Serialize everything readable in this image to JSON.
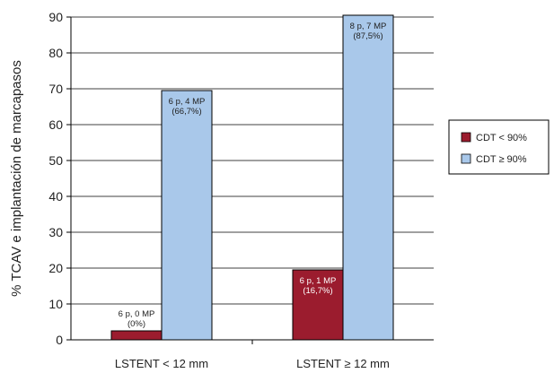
{
  "chart_data": {
    "type": "bar",
    "title": "",
    "xlabel": "",
    "ylabel": "% TCAV e implantación de marcapasos",
    "ylim": [
      0,
      90
    ],
    "yticks": [
      0,
      10,
      20,
      30,
      40,
      50,
      60,
      70,
      80,
      90
    ],
    "grid": true,
    "legend_position": "right",
    "categories": [
      "LSTENT < 12 mm",
      "LSTENT ≥ 12 mm"
    ],
    "series": [
      {
        "name": "CDT < 90%",
        "color": "#9b1c2e",
        "values": [
          2.5,
          19.5
        ],
        "labels": [
          [
            "6 p, 0 MP",
            "(0%)"
          ],
          [
            "6 p, 1 MP",
            "(16,7%)"
          ]
        ]
      },
      {
        "name": "CDT ≥ 90%",
        "color": "#a9c8ea",
        "values": [
          69.5,
          90.5
        ],
        "labels": [
          [
            "6 p, 4 MP",
            "(66,7%)"
          ],
          [
            "8 p, 7 MP",
            "(87,5%)"
          ]
        ]
      }
    ]
  }
}
